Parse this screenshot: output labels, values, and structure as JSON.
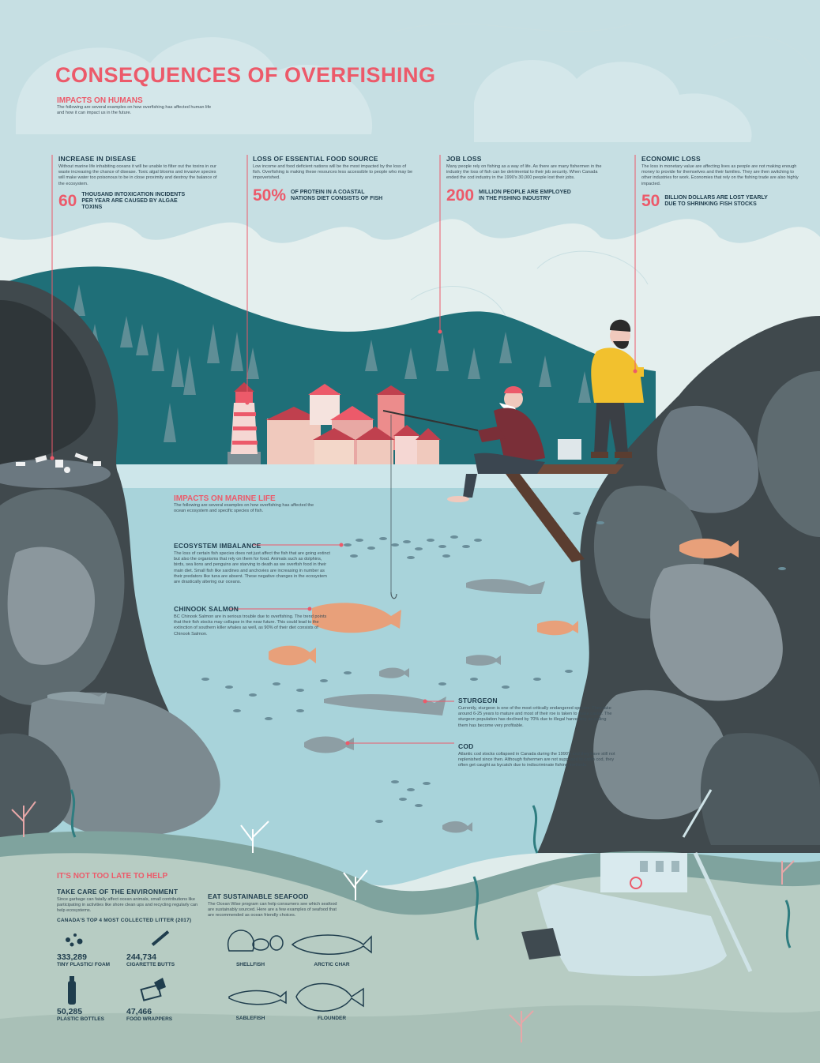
{
  "title": "CONSEQUENCES OF OVERFISHING",
  "colors": {
    "accent": "#ec5a6a",
    "navy": "#1f3d4d",
    "water": "#a8d3da",
    "mountain": "#1f6f78",
    "rock": "#5e6b70"
  },
  "humans": {
    "heading": "IMPACTS ON HUMANS",
    "intro": "The following are several examples on how overfishing has affected human life and how it can impact us in the future.",
    "items": [
      {
        "title": "INCREASE IN DISEASE",
        "text": "Without marine life inhabiting oceans it will be unable to filter out the toxins in our waste increasing the chance of disease. Toxic algal blooms and invasive species will make water too poisonous to be in close proximity and destroy the balance of the ecosystem.",
        "stat": "60",
        "stat_text": "THOUSAND INTOXICATION INCIDENTS PER YEAR ARE CAUSED BY ALGAE TOXINS"
      },
      {
        "title": "LOSS OF ESSENTIAL FOOD SOURCE",
        "text": "Low income and food deficient nations will be the most impacted by the loss of fish. Overfishing is making these resources less accessible to people who may be impoverished.",
        "stat": "50%",
        "stat_text": "OF PROTEIN IN A COASTAL NATIONS DIET CONSISTS OF FISH"
      },
      {
        "title": "JOB LOSS",
        "text": "Many people rely on fishing as a way of life. As there are many fishermen in the industry the loss of fish can be detrimental to their job security. When Canada ended the cod industry in the 1990's 30,000 people lost their jobs.",
        "stat": "200",
        "stat_text": "MILLION PEOPLE ARE EMPLOYED IN THE FISHING INDUSTRY"
      },
      {
        "title": "ECONOMIC LOSS",
        "text": "The loss in monetary value are affecting lives as people are not making enough money to provide for themselves and their families. They are then switching to other industries for work. Economies that rely on the fishing trade are also highly impacted.",
        "stat": "50",
        "stat_text": "BILLION DOLLARS ARE LOST YEARLY DUE TO SHRINKING FISH STOCKS"
      }
    ]
  },
  "marine": {
    "heading": "IMPACTS ON MARINE LIFE",
    "intro": "The following are several examples on how overfishing has affected the ocean ecosystem and specific species of fish.",
    "items": [
      {
        "title": "ECOSYSTEM IMBALANCE",
        "text": "The loss of certain fish species does not just affect the fish that are going extinct but also the organisms that rely on them for food. Animals such as dolphins, birds, sea lions and penguins are starving to death as we overfish food in their main diet. Small fish like sardines and anchovies are increasing in number as their predators like tuna are absent. These negative changes in the ecosystem are drastically altering our oceans."
      },
      {
        "title": "CHINOOK SALMON",
        "text": "BC Chinook Salmon are in serious trouble due to overfishing. The trend points that their fish stocks may collapse in the near future. This could lead to the extinction of southern killer whales as well, as 90% of their diet consists of Chinook Salmon."
      },
      {
        "title": "STURGEON",
        "text": "Currently, sturgeon is one of the most critically endangered species. They take around 6-25 years to mature and most of their roe is taken to make caviar. The sturgeon population has declined by 70% due to illegal harvesting as selling them has become very profitable."
      },
      {
        "title": "COD",
        "text": "Atlantic cod stocks collapsed in Canada during the 1990's and they have still not replenished since then. Although fishermen are not supposed to catch cod, they often get caught as bycatch due to indiscriminate fishing methods."
      }
    ]
  },
  "help": {
    "heading": "IT'S NOT TOO LATE TO HELP",
    "environment": {
      "title": "TAKE CARE OF THE ENVIRONMENT",
      "text": "Since garbage can fatally affect ocean animals, small contributions like participating in activities like shore clean ups and recycling regularly can help ecosystems.",
      "litter_heading": "CANADA'S TOP 4 MOST COLLECTED LITTER (2017)",
      "litter": [
        {
          "count": "333,289",
          "label": "TINY PLASTIC/ FOAM"
        },
        {
          "count": "244,734",
          "label": "CIGARETTE BUTTS"
        },
        {
          "count": "50,285",
          "label": "PLASTIC BOTTLES"
        },
        {
          "count": "47,466",
          "label": "FOOD WRAPPERS"
        }
      ]
    },
    "seafood": {
      "title": "EAT SUSTAINABLE SEAFOOD",
      "text": "The Ocean Wise program can help consumers see which seafood are sustainably sourced. Here are a few examples of seafood that are recommended as ocean friendly choices.",
      "items": [
        "SHELLFISH",
        "ARCTIC CHAR",
        "SABLEFISH",
        "FLOUNDER"
      ]
    }
  }
}
